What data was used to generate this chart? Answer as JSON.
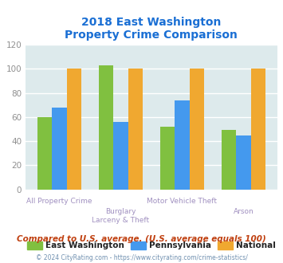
{
  "title_line1": "2018 East Washington",
  "title_line2": "Property Crime Comparison",
  "cat_labels_top": [
    "All Property Crime",
    "",
    "Motor Vehicle Theft",
    ""
  ],
  "cat_labels_bottom": [
    "",
    "Burglary\nLarceny & Theft",
    "",
    "Arson"
  ],
  "east_washington": [
    60,
    103,
    52,
    49
  ],
  "pennsylvania": [
    68,
    56,
    74,
    45
  ],
  "national": [
    100,
    100,
    100,
    100
  ],
  "bar_colors": {
    "east_washington": "#80c040",
    "pennsylvania": "#4499ee",
    "national": "#f0a830"
  },
  "ylim": [
    0,
    120
  ],
  "yticks": [
    0,
    20,
    40,
    60,
    80,
    100,
    120
  ],
  "legend_labels": [
    "East Washington",
    "Pennsylvania",
    "National"
  ],
  "footnote1": "Compared to U.S. average. (U.S. average equals 100)",
  "footnote2": "© 2024 CityRating.com - https://www.cityrating.com/crime-statistics/",
  "title_color": "#1a6fd4",
  "footnote1_color": "#c04010",
  "footnote2_color": "#7090b0",
  "bg_color": "#ddeaec",
  "grid_color": "#ffffff",
  "tick_label_color": "#909090",
  "xlabel_color_top": "#a090c0",
  "xlabel_color_bottom": "#a090c0",
  "bar_width": 0.24
}
